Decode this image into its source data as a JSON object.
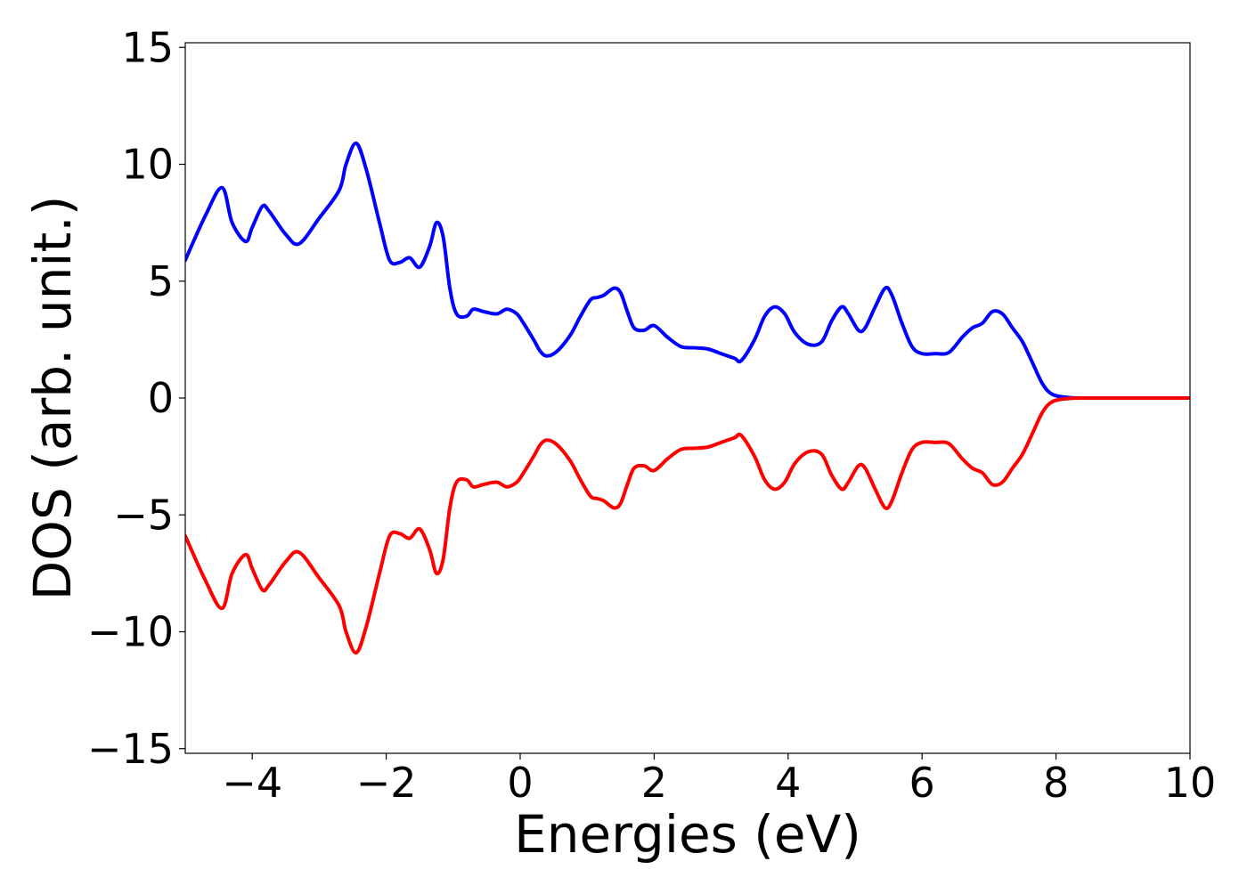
{
  "chart_data": {
    "type": "line",
    "title": "",
    "xlabel": "Energies (eV)",
    "ylabel": "DOS (arb. unit.)",
    "xlim": [
      -5,
      10
    ],
    "ylim": [
      -15.2,
      15.2
    ],
    "xticks": [
      -4,
      -2,
      0,
      2,
      4,
      6,
      8,
      10
    ],
    "xtick_labels": [
      "−4",
      "−2",
      "0",
      "2",
      "4",
      "6",
      "8",
      "10"
    ],
    "yticks": [
      -15,
      -10,
      -5,
      0,
      5,
      10,
      15
    ],
    "ytick_labels": [
      "−15",
      "−10",
      "−5",
      "0",
      "5",
      "10",
      "15"
    ],
    "grid": false,
    "legend": null,
    "series": [
      {
        "color": "#0000ff",
        "x": [
          -5.0,
          -4.7,
          -4.45,
          -4.3,
          -4.1,
          -4.0,
          -3.85,
          -3.75,
          -3.5,
          -3.3,
          -3.0,
          -2.7,
          -2.6,
          -2.45,
          -2.3,
          -2.1,
          -1.95,
          -1.8,
          -1.65,
          -1.5,
          -1.35,
          -1.25,
          -1.15,
          -1.05,
          -0.95,
          -0.8,
          -0.7,
          -0.55,
          -0.35,
          -0.2,
          -0.05,
          0.05,
          0.2,
          0.3,
          0.4,
          0.55,
          0.75,
          0.9,
          1.05,
          1.15,
          1.25,
          1.4,
          1.5,
          1.6,
          1.7,
          1.85,
          2.0,
          2.2,
          2.4,
          2.6,
          2.8,
          3.0,
          3.2,
          3.3,
          3.5,
          3.65,
          3.8,
          3.95,
          4.1,
          4.3,
          4.5,
          4.65,
          4.8,
          4.9,
          5.05,
          5.15,
          5.3,
          5.45,
          5.55,
          5.7,
          5.85,
          6.0,
          6.2,
          6.4,
          6.6,
          6.75,
          6.9,
          7.05,
          7.2,
          7.35,
          7.5,
          7.65,
          7.8,
          7.95,
          8.2,
          8.5,
          9.0,
          10.0
        ],
        "y": [
          5.9,
          7.8,
          9.0,
          7.5,
          6.7,
          7.3,
          8.2,
          8.0,
          7.0,
          6.6,
          7.7,
          8.9,
          10.0,
          10.9,
          9.8,
          7.5,
          5.9,
          5.8,
          6.0,
          5.6,
          6.5,
          7.5,
          6.9,
          4.7,
          3.6,
          3.5,
          3.8,
          3.7,
          3.6,
          3.8,
          3.6,
          3.2,
          2.5,
          2.0,
          1.8,
          2.0,
          2.7,
          3.5,
          4.2,
          4.3,
          4.4,
          4.7,
          4.5,
          3.7,
          3.0,
          2.9,
          3.1,
          2.6,
          2.2,
          2.15,
          2.1,
          1.9,
          1.7,
          1.6,
          2.5,
          3.5,
          3.9,
          3.6,
          2.8,
          2.3,
          2.4,
          3.3,
          3.9,
          3.6,
          2.9,
          3.0,
          3.9,
          4.7,
          4.4,
          3.2,
          2.2,
          1.9,
          1.9,
          1.95,
          2.6,
          3.0,
          3.2,
          3.7,
          3.6,
          3.0,
          2.4,
          1.5,
          0.6,
          0.15,
          0.02,
          0.0,
          0.0,
          0.0
        ]
      },
      {
        "color": "#ff0000",
        "x": [
          -5.0,
          -4.7,
          -4.45,
          -4.3,
          -4.1,
          -4.0,
          -3.85,
          -3.75,
          -3.5,
          -3.3,
          -3.0,
          -2.7,
          -2.6,
          -2.45,
          -2.3,
          -2.1,
          -1.95,
          -1.8,
          -1.65,
          -1.5,
          -1.35,
          -1.25,
          -1.15,
          -1.05,
          -0.95,
          -0.8,
          -0.7,
          -0.55,
          -0.35,
          -0.2,
          -0.05,
          0.05,
          0.2,
          0.3,
          0.4,
          0.55,
          0.75,
          0.9,
          1.05,
          1.15,
          1.25,
          1.4,
          1.5,
          1.6,
          1.7,
          1.85,
          2.0,
          2.2,
          2.4,
          2.6,
          2.8,
          3.0,
          3.2,
          3.3,
          3.5,
          3.65,
          3.8,
          3.95,
          4.1,
          4.3,
          4.5,
          4.65,
          4.8,
          4.9,
          5.05,
          5.15,
          5.3,
          5.45,
          5.55,
          5.7,
          5.85,
          6.0,
          6.2,
          6.4,
          6.6,
          6.75,
          6.9,
          7.05,
          7.2,
          7.35,
          7.5,
          7.65,
          7.8,
          7.95,
          8.2,
          8.5,
          9.0,
          10.0
        ],
        "y": [
          -5.9,
          -7.8,
          -9.0,
          -7.5,
          -6.7,
          -7.3,
          -8.2,
          -8.0,
          -7.0,
          -6.6,
          -7.7,
          -8.9,
          -10.0,
          -10.9,
          -9.8,
          -7.5,
          -5.9,
          -5.8,
          -6.0,
          -5.6,
          -6.5,
          -7.5,
          -6.9,
          -4.7,
          -3.6,
          -3.5,
          -3.8,
          -3.7,
          -3.6,
          -3.8,
          -3.6,
          -3.2,
          -2.5,
          -2.0,
          -1.8,
          -2.0,
          -2.7,
          -3.5,
          -4.2,
          -4.3,
          -4.4,
          -4.7,
          -4.5,
          -3.7,
          -3.0,
          -2.9,
          -3.1,
          -2.6,
          -2.2,
          -2.15,
          -2.1,
          -1.9,
          -1.7,
          -1.6,
          -2.5,
          -3.5,
          -3.9,
          -3.6,
          -2.8,
          -2.3,
          -2.4,
          -3.3,
          -3.9,
          -3.6,
          -2.9,
          -3.0,
          -3.9,
          -4.7,
          -4.4,
          -3.2,
          -2.2,
          -1.9,
          -1.9,
          -1.95,
          -2.6,
          -3.0,
          -3.2,
          -3.7,
          -3.6,
          -3.0,
          -2.4,
          -1.5,
          -0.6,
          -0.15,
          -0.02,
          0.0,
          0.0,
          0.0
        ]
      }
    ]
  }
}
